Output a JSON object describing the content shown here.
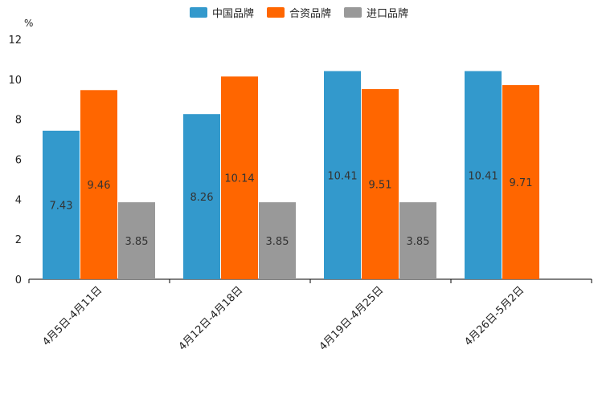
{
  "chart_data": {
    "type": "bar",
    "unit_label": "%",
    "categories": [
      "4月5日-4月11日",
      "4月12日-4月18日",
      "4月19日-4月25日",
      "4月26日-5月2日"
    ],
    "series": [
      {
        "name": "中国品牌",
        "color": "#3399cc",
        "values": [
          7.43,
          8.26,
          10.41,
          10.41
        ]
      },
      {
        "name": "合资品牌",
        "color": "#ff6600",
        "values": [
          9.46,
          10.14,
          9.51,
          9.71
        ]
      },
      {
        "name": "进口品牌",
        "color": "#999999",
        "values": [
          3.85,
          3.85,
          3.85,
          null
        ]
      }
    ],
    "ylim": [
      0,
      12
    ],
    "yticks": [
      0,
      2,
      4,
      6,
      8,
      10,
      12
    ],
    "legend_position": "top-center"
  }
}
